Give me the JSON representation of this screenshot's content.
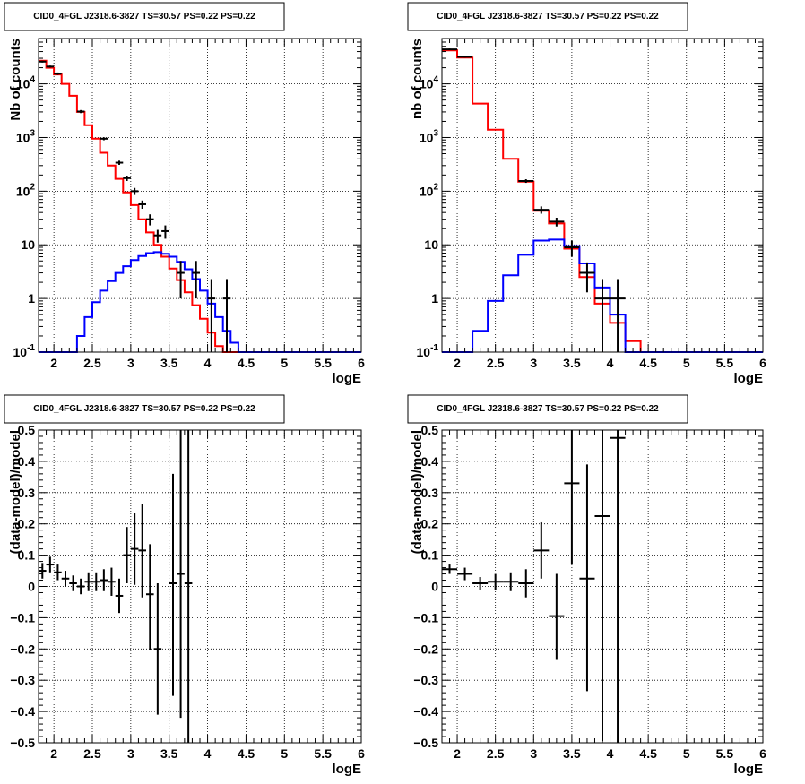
{
  "chart_data": [
    {
      "type": "line",
      "title": "CID0_4FGL J2318.6-3827 TS=30.57 PS=0.22 PS=0.22",
      "xlabel": "logE",
      "ylabel": "Nb of counts",
      "xlim": [
        1.8,
        6.0
      ],
      "ylim": [
        0.1,
        70000
      ],
      "yscale": "log",
      "grid": true,
      "xticks": [
        "2",
        "2.5",
        "3",
        "3.5",
        "4",
        "4.5",
        "5",
        "5.5",
        "6"
      ],
      "yticks": [
        "10^-1",
        "1",
        "10",
        "10^2",
        "10^3",
        "10^4"
      ],
      "bin_edges": [
        1.8,
        1.9,
        2.0,
        2.1,
        2.2,
        2.3,
        2.4,
        2.5,
        2.6,
        2.7,
        2.8,
        2.9,
        3.0,
        3.1,
        3.2,
        3.3,
        3.4,
        3.5,
        3.6,
        3.7,
        3.8,
        3.9,
        4.0,
        4.1,
        4.2,
        4.3,
        4.4,
        4.5,
        4.6,
        4.7,
        4.8,
        4.9,
        5.0,
        5.1,
        5.2,
        5.3,
        5.4,
        5.5,
        5.6,
        5.7,
        5.8,
        5.9,
        6.0
      ],
      "series": [
        {
          "color": "#ff0000",
          "values": [
            27000,
            20000,
            15000,
            10000,
            6000,
            3000,
            1700,
            950,
            520,
            300,
            170,
            95,
            55,
            30,
            17,
            10,
            6,
            3.6,
            2.2,
            1.3,
            0.75,
            0.42,
            0.23,
            0.13,
            0.1,
            0.1,
            0.1,
            0.1,
            0.1,
            0.1,
            0.1,
            0.1,
            0.1,
            0.1,
            0.1,
            0.1,
            0.1,
            0.1,
            0.1,
            0.1,
            0.1,
            0.1
          ]
        },
        {
          "color": "#0000ff",
          "values": [
            0.1,
            0.1,
            0.1,
            0.1,
            0.1,
            0.2,
            0.45,
            0.85,
            1.4,
            2.1,
            3.0,
            4.0,
            5.2,
            6.2,
            7.0,
            7.3,
            6.8,
            6.0,
            4.8,
            3.5,
            2.3,
            1.4,
            0.8,
            0.45,
            0.25,
            0.15,
            0.1,
            0.1,
            0.1,
            0.1,
            0.1,
            0.1,
            0.1,
            0.1,
            0.1,
            0.1,
            0.1,
            0.1,
            0.1,
            0.1,
            0.1,
            0.1
          ]
        }
      ],
      "points": [
        {
          "x": 1.85,
          "y": 26000,
          "yerr": [
            1000,
            1000
          ]
        },
        {
          "x": 1.95,
          "y": 21000,
          "yerr": [
            900,
            900
          ]
        },
        {
          "x": 2.05,
          "y": 15500,
          "yerr": [
            800,
            800
          ]
        },
        {
          "x": 2.35,
          "y": 3050,
          "yerr": [
            200,
            200
          ]
        },
        {
          "x": 2.65,
          "y": 950,
          "yerr": [
            60,
            60
          ]
        },
        {
          "x": 2.85,
          "y": 340,
          "yerr": [
            30,
            30
          ]
        },
        {
          "x": 2.95,
          "y": 175,
          "yerr": [
            20,
            20
          ]
        },
        {
          "x": 3.05,
          "y": 100,
          "yerr": [
            15,
            15
          ]
        },
        {
          "x": 3.15,
          "y": 57,
          "yerr": [
            10,
            10
          ]
        },
        {
          "x": 3.25,
          "y": 30,
          "yerr": [
            7,
            7
          ]
        },
        {
          "x": 3.35,
          "y": 15,
          "yerr": [
            4,
            4
          ]
        },
        {
          "x": 3.45,
          "y": 18,
          "yerr": [
            5,
            5
          ]
        },
        {
          "x": 3.65,
          "y": 3,
          "yerr": [
            2,
            2
          ]
        },
        {
          "x": 3.85,
          "y": 3,
          "yerr": [
            2,
            2
          ]
        },
        {
          "x": 4.05,
          "y": 1,
          "yerr": [
            0.9,
            1.3
          ]
        },
        {
          "x": 4.25,
          "y": 1,
          "yerr": [
            0.9,
            1.3
          ]
        }
      ]
    },
    {
      "type": "line",
      "title": "CID0_4FGL J2318.6-3827 TS=30.57 PS=0.22 PS=0.22",
      "xlabel": "logE",
      "ylabel": "nb of counts",
      "xlim": [
        1.8,
        6.0
      ],
      "ylim": [
        0.1,
        70000
      ],
      "yscale": "log",
      "grid": true,
      "xticks": [
        "2",
        "2.5",
        "3",
        "3.5",
        "4",
        "4.5",
        "5",
        "5.5",
        "6"
      ],
      "yticks": [
        "10^-1",
        "1",
        "10",
        "10^2",
        "10^3",
        "10^4"
      ],
      "bin_edges": [
        1.8,
        2.0,
        2.2,
        2.4,
        2.6,
        2.8,
        3.0,
        3.2,
        3.4,
        3.6,
        3.8,
        4.0,
        4.2,
        4.4,
        4.6,
        4.8,
        5.0,
        5.2,
        5.4,
        5.6,
        5.8,
        6.0
      ],
      "series": [
        {
          "color": "#ff0000",
          "values": [
            42000,
            31000,
            4300,
            1400,
            400,
            150,
            43,
            25,
            8.5,
            2.5,
            0.8,
            0.35,
            0.16,
            0.1,
            0.1,
            0.1,
            0.1,
            0.1,
            0.1,
            0.1,
            0.1
          ]
        },
        {
          "color": "#0000ff",
          "values": [
            0.1,
            0.1,
            0.25,
            0.9,
            2.7,
            6.5,
            12,
            12.5,
            9.5,
            4.5,
            1.6,
            0.5,
            0.1,
            0.1,
            0.1,
            0.1,
            0.1,
            0.1,
            0.1,
            0.1,
            0.1
          ]
        }
      ],
      "points": [
        {
          "x": 1.9,
          "y": 44000,
          "yerr": [
            1500,
            1500
          ]
        },
        {
          "x": 2.1,
          "y": 32000,
          "yerr": [
            1200,
            1200
          ]
        },
        {
          "x": 2.9,
          "y": 155,
          "yerr": [
            12,
            12
          ]
        },
        {
          "x": 3.1,
          "y": 45,
          "yerr": [
            7,
            7
          ]
        },
        {
          "x": 3.3,
          "y": 27,
          "yerr": [
            5,
            5
          ]
        },
        {
          "x": 3.5,
          "y": 9,
          "yerr": [
            3,
            3
          ]
        },
        {
          "x": 3.7,
          "y": 3,
          "yerr": [
            1.7,
            1.7
          ]
        },
        {
          "x": 3.9,
          "y": 1,
          "yerr": [
            0.9,
            1.3
          ]
        },
        {
          "x": 4.1,
          "y": 1,
          "yerr": [
            0.9,
            1.3
          ]
        }
      ]
    },
    {
      "type": "scatter",
      "title": "CID0_4FGL J2318.6-3827 TS=30.57 PS=0.22 PS=0.22",
      "xlabel": "logE",
      "ylabel": "(data-model)/model",
      "xlim": [
        1.8,
        6.0
      ],
      "ylim": [
        -0.5,
        0.5
      ],
      "grid": true,
      "xticks": [
        "2",
        "2.5",
        "3",
        "3.5",
        "4",
        "4.5",
        "5",
        "5.5",
        "6"
      ],
      "yticks": [
        "-0.5",
        "-0.4",
        "-0.3",
        "-0.2",
        "-0.1",
        "0",
        "0.1",
        "0.2",
        "0.3",
        "0.4",
        "0.5"
      ],
      "xhalf": 0.05,
      "points": [
        {
          "x": 1.85,
          "y": 0.05,
          "yerr": [
            0.025,
            0.025
          ]
        },
        {
          "x": 1.95,
          "y": 0.07,
          "yerr": [
            0.025,
            0.025
          ]
        },
        {
          "x": 2.05,
          "y": 0.045,
          "yerr": [
            0.025,
            0.025
          ]
        },
        {
          "x": 2.15,
          "y": 0.025,
          "yerr": [
            0.025,
            0.025
          ]
        },
        {
          "x": 2.25,
          "y": 0.01,
          "yerr": [
            0.025,
            0.025
          ]
        },
        {
          "x": 2.35,
          "y": 0.0,
          "yerr": [
            0.025,
            0.025
          ]
        },
        {
          "x": 2.45,
          "y": 0.015,
          "yerr": [
            0.03,
            0.03
          ]
        },
        {
          "x": 2.55,
          "y": 0.015,
          "yerr": [
            0.03,
            0.03
          ]
        },
        {
          "x": 2.65,
          "y": 0.02,
          "yerr": [
            0.035,
            0.035
          ]
        },
        {
          "x": 2.75,
          "y": 0.015,
          "yerr": [
            0.045,
            0.045
          ]
        },
        {
          "x": 2.85,
          "y": -0.03,
          "yerr": [
            0.055,
            0.055
          ]
        },
        {
          "x": 2.95,
          "y": 0.1,
          "yerr": [
            0.09,
            0.09
          ]
        },
        {
          "x": 3.05,
          "y": 0.12,
          "yerr": [
            0.115,
            0.115
          ]
        },
        {
          "x": 3.15,
          "y": 0.115,
          "yerr": [
            0.15,
            0.15
          ]
        },
        {
          "x": 3.25,
          "y": -0.025,
          "yerr": [
            0.18,
            0.16
          ]
        },
        {
          "x": 3.35,
          "y": -0.2,
          "yerr": [
            0.21,
            0.21
          ]
        },
        {
          "x": 3.55,
          "y": 0.01,
          "yerr": [
            0.36,
            0.35
          ]
        },
        {
          "x": 3.65,
          "y": 0.04,
          "yerr": [
            0.46,
            0.46
          ]
        },
        {
          "x": 3.75,
          "y": 0.01,
          "yerr": [
            0.52,
            0.52
          ]
        }
      ]
    },
    {
      "type": "scatter",
      "title": "CID0_4FGL J2318.6-3827 TS=30.57 PS=0.22 PS=0.22",
      "xlabel": "logE",
      "ylabel": "(data-model)/model",
      "xlim": [
        1.8,
        6.0
      ],
      "ylim": [
        -0.5,
        0.5
      ],
      "grid": true,
      "xticks": [
        "2",
        "2.5",
        "3",
        "3.5",
        "4",
        "4.5",
        "5",
        "5.5",
        "6"
      ],
      "yticks": [
        "-0.5",
        "-0.4",
        "-0.3",
        "-0.2",
        "-0.1",
        "0",
        "0.1",
        "0.2",
        "0.3",
        "0.4",
        "0.5"
      ],
      "xhalf": 0.1,
      "points": [
        {
          "x": 1.9,
          "y": 0.055,
          "yerr": [
            0.015,
            0.015
          ]
        },
        {
          "x": 2.1,
          "y": 0.04,
          "yerr": [
            0.02,
            0.02
          ]
        },
        {
          "x": 2.3,
          "y": 0.01,
          "yerr": [
            0.02,
            0.02
          ]
        },
        {
          "x": 2.5,
          "y": 0.015,
          "yerr": [
            0.025,
            0.025
          ]
        },
        {
          "x": 2.7,
          "y": 0.015,
          "yerr": [
            0.03,
            0.03
          ]
        },
        {
          "x": 2.9,
          "y": 0.01,
          "yerr": [
            0.045,
            0.045
          ]
        },
        {
          "x": 3.1,
          "y": 0.115,
          "yerr": [
            0.09,
            0.09
          ]
        },
        {
          "x": 3.3,
          "y": -0.095,
          "yerr": [
            0.14,
            0.135
          ]
        },
        {
          "x": 3.5,
          "y": 0.33,
          "yerr": [
            0.26,
            0.27
          ]
        },
        {
          "x": 3.7,
          "y": 0.025,
          "yerr": [
            0.36,
            0.365
          ]
        },
        {
          "x": 3.9,
          "y": 0.225,
          "yerr": [
            0.72,
            0.6
          ]
        },
        {
          "x": 4.1,
          "y": 0.475,
          "yerr": [
            1.0,
            1.0
          ]
        }
      ]
    }
  ]
}
